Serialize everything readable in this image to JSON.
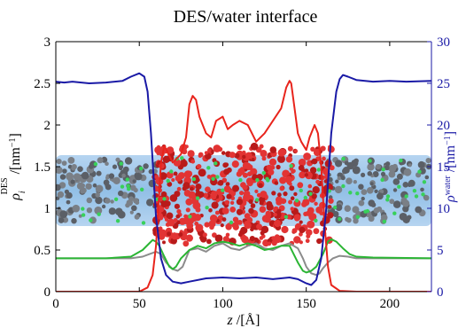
{
  "chart_data": {
    "type": "line",
    "title": "DES/water interface",
    "xlabel": "z / [Å]",
    "ylabel_left": "ρ_i^DES / [nm^-1]",
    "ylabel_right": "ρ^water / [nm^-1]",
    "xlim": [
      0,
      225
    ],
    "ylim_left": [
      0,
      3
    ],
    "ylim_right": [
      0,
      30
    ],
    "xticks": [
      0,
      50,
      100,
      150,
      200
    ],
    "yticks_left": [
      0,
      0.5,
      1,
      1.5,
      2,
      2.5,
      3
    ],
    "yticks_right": [
      0,
      5,
      10,
      15,
      20,
      25,
      30
    ],
    "grid": false,
    "colors": {
      "water": "#1a1aa6",
      "red_series": "#e8241c",
      "green_series": "#2bb534",
      "gray_series": "#8c8c8c",
      "right_axis": "#1a1aa6"
    },
    "series": [
      {
        "axis": "right",
        "color": "#1a1aa6",
        "x": [
          0,
          5,
          10,
          20,
          30,
          40,
          45,
          50,
          53,
          55,
          57,
          60,
          63,
          66,
          70,
          75,
          80,
          90,
          100,
          110,
          120,
          130,
          140,
          145,
          150,
          153,
          156,
          159,
          162,
          165,
          168,
          170,
          172,
          175,
          180,
          190,
          200,
          210,
          225
        ],
        "y": [
          25.2,
          25.1,
          25.2,
          25.0,
          25.1,
          25.3,
          25.8,
          26.2,
          25.8,
          24.0,
          19.0,
          9.0,
          4.0,
          2.0,
          1.2,
          1.0,
          1.2,
          1.6,
          1.7,
          1.6,
          1.7,
          1.5,
          1.7,
          1.5,
          1.0,
          0.8,
          1.4,
          4.0,
          10.0,
          19.0,
          24.0,
          25.5,
          26.0,
          25.8,
          25.4,
          25.2,
          25.3,
          25.2,
          25.3
        ]
      },
      {
        "axis": "left",
        "color": "#e8241c",
        "x": [
          0,
          30,
          50,
          55,
          58,
          60,
          62,
          63,
          65,
          70,
          75,
          78,
          80,
          82,
          84,
          86,
          90,
          93,
          96,
          100,
          103,
          106,
          110,
          115,
          120,
          125,
          130,
          135,
          138,
          140,
          141,
          143,
          145,
          147,
          150,
          152,
          155,
          157,
          159,
          161,
          163,
          165,
          170,
          180,
          225
        ],
        "y": [
          0,
          0,
          0,
          0.05,
          0.2,
          0.55,
          1.2,
          1.55,
          1.75,
          1.55,
          1.65,
          1.85,
          2.25,
          2.35,
          2.3,
          2.1,
          1.9,
          1.85,
          2.05,
          2.1,
          1.95,
          2.0,
          2.05,
          2.0,
          1.8,
          1.9,
          2.05,
          2.2,
          2.45,
          2.53,
          2.5,
          2.2,
          1.9,
          1.8,
          1.7,
          1.85,
          2.0,
          1.9,
          1.5,
          0.8,
          0.3,
          0.08,
          0.01,
          0,
          0
        ]
      },
      {
        "axis": "left",
        "color": "#2bb534",
        "x": [
          0,
          30,
          45,
          52,
          56,
          58,
          60,
          62,
          65,
          68,
          70,
          72,
          75,
          80,
          85,
          90,
          95,
          100,
          105,
          110,
          115,
          120,
          125,
          130,
          135,
          140,
          145,
          148,
          150,
          153,
          156,
          160,
          163,
          165,
          168,
          172,
          176,
          180,
          190,
          225
        ],
        "y": [
          0.4,
          0.4,
          0.42,
          0.5,
          0.58,
          0.62,
          0.6,
          0.55,
          0.42,
          0.3,
          0.27,
          0.3,
          0.4,
          0.5,
          0.55,
          0.52,
          0.58,
          0.6,
          0.58,
          0.55,
          0.58,
          0.55,
          0.5,
          0.52,
          0.55,
          0.55,
          0.35,
          0.25,
          0.23,
          0.25,
          0.3,
          0.45,
          0.6,
          0.63,
          0.6,
          0.52,
          0.45,
          0.42,
          0.41,
          0.4
        ]
      },
      {
        "axis": "left",
        "color": "#8c8c8c",
        "x": [
          0,
          30,
          45,
          52,
          56,
          60,
          63,
          66,
          70,
          73,
          76,
          80,
          85,
          90,
          95,
          100,
          105,
          110,
          115,
          120,
          125,
          130,
          135,
          140,
          145,
          148,
          150,
          153,
          156,
          158,
          160,
          163,
          166,
          170,
          175,
          180,
          190,
          225
        ],
        "y": [
          0.4,
          0.4,
          0.4,
          0.42,
          0.45,
          0.48,
          0.45,
          0.35,
          0.27,
          0.25,
          0.3,
          0.5,
          0.52,
          0.48,
          0.55,
          0.58,
          0.52,
          0.5,
          0.55,
          0.58,
          0.52,
          0.5,
          0.55,
          0.58,
          0.52,
          0.4,
          0.3,
          0.22,
          0.2,
          0.22,
          0.28,
          0.35,
          0.4,
          0.43,
          0.42,
          0.4,
          0.4,
          0.4
        ]
      }
    ]
  }
}
